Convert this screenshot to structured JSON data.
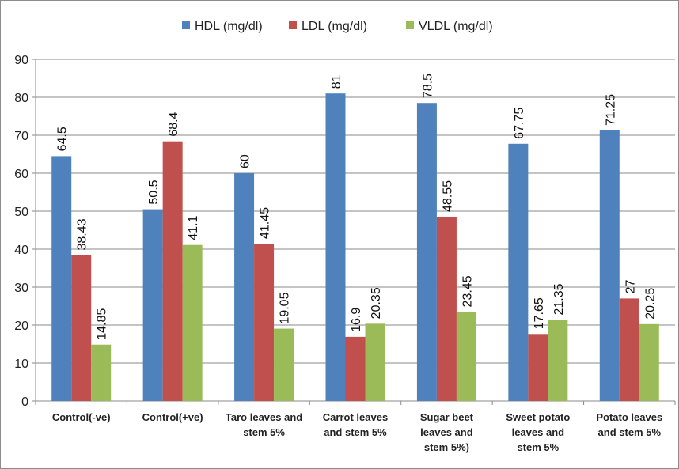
{
  "chart_data": {
    "type": "bar",
    "categories": [
      "Control(-ve)",
      "Control(+ve)",
      "Taro leaves and stem 5%",
      "Carrot leaves and stem 5%",
      "Sugar beet leaves and stem 5%)",
      "Sweet potato leaves and stem 5%",
      "Potato leaves and stem 5%"
    ],
    "category_lines": [
      [
        "Control(-ve)"
      ],
      [
        "Control(+ve)"
      ],
      [
        "Taro leaves and",
        "stem 5%"
      ],
      [
        "Carrot leaves",
        "and stem 5%"
      ],
      [
        "Sugar beet",
        "leaves and",
        "stem 5%)"
      ],
      [
        "Sweet potato",
        "leaves and",
        "stem 5%"
      ],
      [
        "Potato leaves",
        "and stem 5%"
      ]
    ],
    "series": [
      {
        "name": "HDL (mg/dl)",
        "color": "#4f81bd",
        "values": [
          64.5,
          50.5,
          60,
          81,
          78.5,
          67.75,
          71.25
        ],
        "labels": [
          "64.5",
          "50.5",
          "60",
          "81",
          "78.5",
          "67.75",
          "71.25"
        ]
      },
      {
        "name": "LDL (mg/dl)",
        "color": "#c0504d",
        "values": [
          38.43,
          68.4,
          41.45,
          16.9,
          48.55,
          17.65,
          27
        ],
        "labels": [
          "38.43",
          "68.4",
          "41.45",
          "16.9",
          "48.55",
          "17.65",
          "27"
        ]
      },
      {
        "name": "VLDL (mg/dl)",
        "color": "#9bbb59",
        "values": [
          14.85,
          41.1,
          19.05,
          20.35,
          23.45,
          21.35,
          20.25
        ],
        "labels": [
          "14.85",
          "41.1",
          "19.05",
          "20.35",
          "23.45",
          "21.35",
          "20.25"
        ]
      }
    ],
    "ylim": [
      0,
      90
    ],
    "yticks": [
      0,
      10,
      20,
      30,
      40,
      50,
      60,
      70,
      80,
      90
    ],
    "grid": true,
    "legend_position": "top",
    "data_label_rotation": "vertical"
  }
}
